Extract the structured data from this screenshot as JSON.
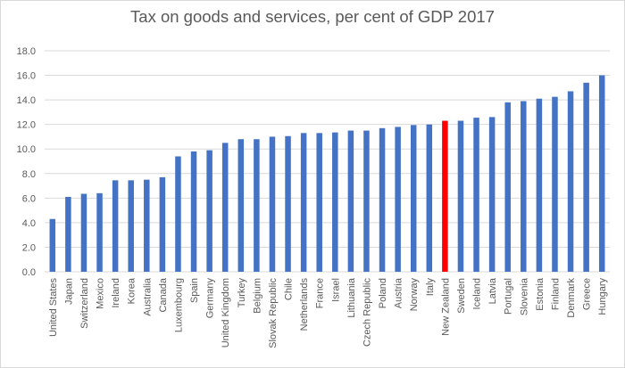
{
  "chart_data": {
    "type": "bar",
    "title": "Tax on goods and services, per cent of GDP 2017",
    "xlabel": "",
    "ylabel": "",
    "ylim": [
      0,
      18
    ],
    "yticks": [
      "0.0",
      "2.0",
      "4.0",
      "6.0",
      "8.0",
      "10.0",
      "12.0",
      "14.0",
      "16.0",
      "18.0"
    ],
    "grid": true,
    "legend": "none",
    "bar_color": "#4472c4",
    "highlight_color": "#ff0000",
    "highlight_category": "New Zealand",
    "categories": [
      "United States",
      "Japan",
      "Switzerland",
      "Mexico",
      "Ireland",
      "Korea",
      "Australia",
      "Canada",
      "Luxembourg",
      "Spain",
      "Germany",
      "United Kingdom",
      "Turkey",
      "Belgium",
      "Slovak Republic",
      "Chile",
      "Netherlands",
      "France",
      "Israel",
      "Lithuania",
      "Czech Republic",
      "Poland",
      "Austria",
      "Norway",
      "Italy",
      "New Zealand",
      "Sweden",
      "Iceland",
      "Latvia",
      "Portugal",
      "Slovenia",
      "Estonia",
      "Finland",
      "Denmark",
      "Greece",
      "Hungary"
    ],
    "values": [
      4.3,
      6.1,
      6.35,
      6.4,
      7.45,
      7.45,
      7.5,
      7.7,
      9.4,
      9.8,
      9.9,
      10.5,
      10.8,
      10.8,
      11.0,
      11.05,
      11.3,
      11.3,
      11.35,
      11.5,
      11.5,
      11.7,
      11.8,
      11.95,
      12.0,
      12.3,
      12.3,
      12.55,
      12.6,
      13.8,
      13.9,
      14.1,
      14.25,
      14.7,
      15.4,
      16.0
    ]
  }
}
